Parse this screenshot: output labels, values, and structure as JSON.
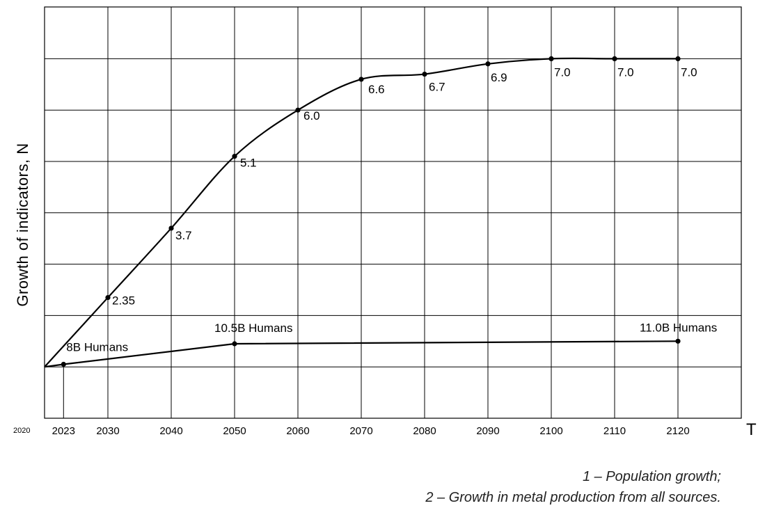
{
  "chart_data": {
    "type": "line",
    "ylabel": "Growth of indicators, N",
    "xlabel": "T",
    "x_axis_start_label": "2020",
    "x_ticks": [
      2023,
      2030,
      2040,
      2050,
      2060,
      2070,
      2080,
      2090,
      2100,
      2110,
      2120
    ],
    "xlim": [
      2020,
      2130
    ],
    "ylim": [
      0,
      8
    ],
    "grid": true,
    "series": [
      {
        "name": "2 – Growth in metal production from all sources.",
        "x": [
          2020,
          2030,
          2040,
          2050,
          2060,
          2070,
          2080,
          2090,
          2100,
          2110,
          2120
        ],
        "y": [
          1.0,
          2.35,
          3.7,
          5.1,
          6.0,
          6.6,
          6.7,
          6.9,
          7.0,
          7.0,
          7.0
        ],
        "labels": [
          "",
          "2.35",
          "3.7",
          "5.1",
          "6.0",
          "6.6",
          "6.7",
          "6.9",
          "7.0",
          "7.0",
          "7.0"
        ]
      },
      {
        "name": "1 – Population growth;",
        "x": [
          2020,
          2023,
          2050,
          2120
        ],
        "y": [
          1.0,
          1.05,
          1.45,
          1.5
        ],
        "labels": [
          "",
          "8B Humans",
          "10.5B Humans",
          "11.0B Humans"
        ]
      }
    ]
  },
  "legend_notes": [
    "1 – Population growth;",
    "2 – Growth in metal production from all sources."
  ]
}
